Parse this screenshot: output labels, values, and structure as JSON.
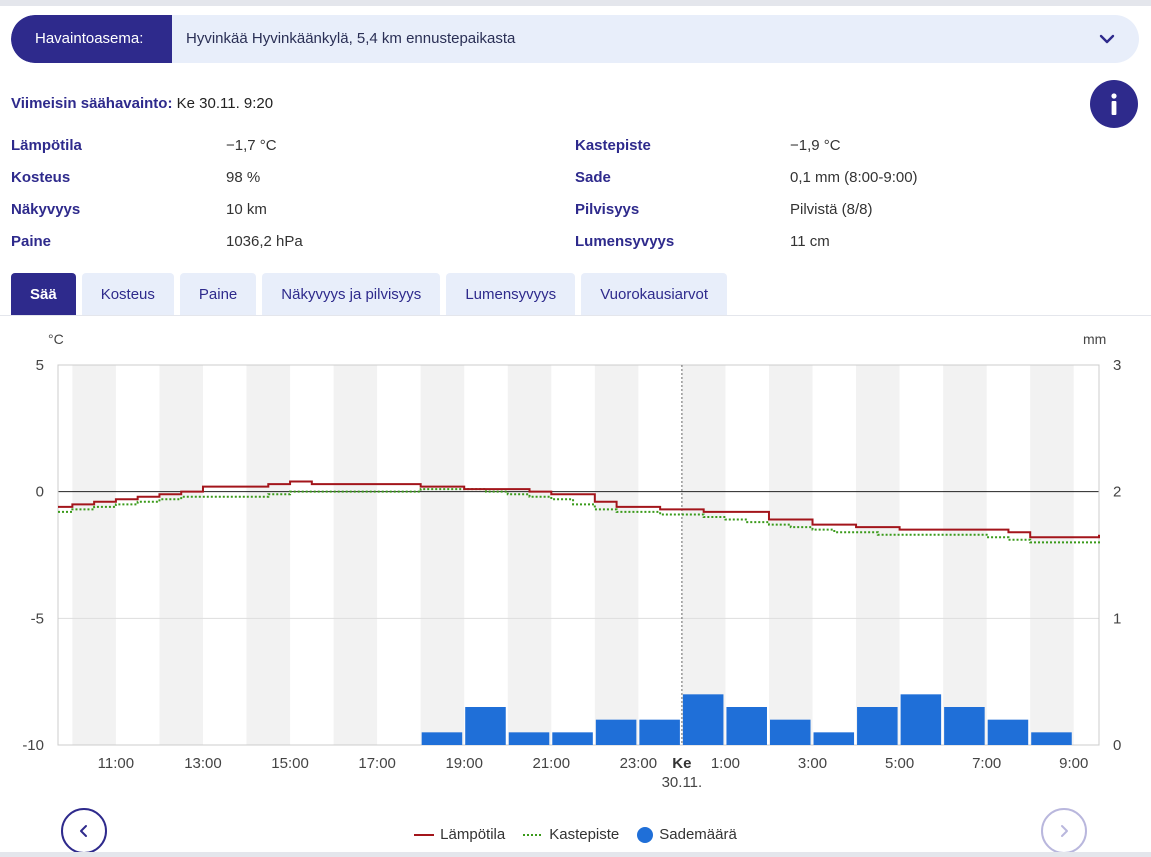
{
  "station": {
    "label": "Havaintoasema:",
    "value": "Hyvinkää Hyvinkäänkylä, 5,4 km ennustepaikasta"
  },
  "latest": {
    "label": "Viimeisin säähavainto:",
    "value": "Ke 30.11. 9:20"
  },
  "observations": [
    {
      "label": "Lämpötila",
      "value": "−1,7 °C"
    },
    {
      "label": "Kosteus",
      "value": "98 %"
    },
    {
      "label": "Näkyvyys",
      "value": "10 km"
    },
    {
      "label": "Paine",
      "value": "1036,2 hPa"
    },
    {
      "label": "Kastepiste",
      "value": "−1,9 °C"
    },
    {
      "label": "Sade",
      "value": "0,1 mm (8:00-9:00)"
    },
    {
      "label": "Pilvisyys",
      "value": "Pilvistä (8/8)"
    },
    {
      "label": "Lumensyvyys",
      "value": "11 cm"
    }
  ],
  "tabs": [
    {
      "label": "Sää",
      "active": true
    },
    {
      "label": "Kosteus"
    },
    {
      "label": "Paine"
    },
    {
      "label": "Näkyvyys ja pilvisyys"
    },
    {
      "label": "Lumensyvyys"
    },
    {
      "label": "Vuorokausiarvot"
    }
  ],
  "legend": {
    "temperature": "Lämpötila",
    "dewpoint": "Kastepiste",
    "precipitation": "Sademäärä"
  },
  "colors": {
    "brand": "#2e2a8c",
    "temperature": "#a3151b",
    "dewpoint": "#3a9a1a",
    "precipitation": "#1f6fd8"
  },
  "chart_data": {
    "type": "line",
    "y_left_unit": "°C",
    "y_right_unit": "mm",
    "y_left_range": [
      -10,
      5
    ],
    "y_left_ticks": [
      5,
      0,
      -5,
      -10
    ],
    "y_right_range": [
      0,
      3
    ],
    "y_right_ticks": [
      3,
      2,
      1,
      0
    ],
    "x_range_hours": [
      9.67,
      33.58
    ],
    "x_tick_labels": [
      {
        "h": 11,
        "label": "11:00"
      },
      {
        "h": 13,
        "label": "13:00"
      },
      {
        "h": 15,
        "label": "15:00"
      },
      {
        "h": 17,
        "label": "17:00"
      },
      {
        "h": 19,
        "label": "19:00"
      },
      {
        "h": 21,
        "label": "21:00"
      },
      {
        "h": 23,
        "label": "23:00"
      },
      {
        "h": 25,
        "label": "1:00"
      },
      {
        "h": 27,
        "label": "3:00"
      },
      {
        "h": 29,
        "label": "5:00"
      },
      {
        "h": 31,
        "label": "7:00"
      },
      {
        "h": 33,
        "label": "9:00"
      }
    ],
    "day_marker": {
      "h": 24,
      "label": "Ke",
      "sublabel": "30.11."
    },
    "series": [
      {
        "name": "Lämpötila",
        "points": [
          [
            9.67,
            -0.6
          ],
          [
            10,
            -0.5
          ],
          [
            10.5,
            -0.4
          ],
          [
            11,
            -0.3
          ],
          [
            11.5,
            -0.2
          ],
          [
            12,
            -0.1
          ],
          [
            12.5,
            0.0
          ],
          [
            13,
            0.2
          ],
          [
            13.5,
            0.2
          ],
          [
            14,
            0.2
          ],
          [
            14.5,
            0.3
          ],
          [
            15,
            0.4
          ],
          [
            15.5,
            0.3
          ],
          [
            16,
            0.3
          ],
          [
            17,
            0.3
          ],
          [
            18,
            0.2
          ],
          [
            18.5,
            0.2
          ],
          [
            19,
            0.1
          ],
          [
            20,
            0.1
          ],
          [
            20.5,
            0.0
          ],
          [
            21,
            -0.1
          ],
          [
            22,
            -0.4
          ],
          [
            22.5,
            -0.6
          ],
          [
            23,
            -0.6
          ],
          [
            23.5,
            -0.7
          ],
          [
            24,
            -0.7
          ],
          [
            24.5,
            -0.8
          ],
          [
            25,
            -0.8
          ],
          [
            26,
            -1.1
          ],
          [
            27,
            -1.3
          ],
          [
            27.5,
            -1.3
          ],
          [
            28,
            -1.4
          ],
          [
            28.5,
            -1.4
          ],
          [
            29,
            -1.5
          ],
          [
            29.5,
            -1.5
          ],
          [
            30,
            -1.5
          ],
          [
            31,
            -1.5
          ],
          [
            31.5,
            -1.6
          ],
          [
            32,
            -1.8
          ],
          [
            32.5,
            -1.8
          ],
          [
            33,
            -1.8
          ],
          [
            33.58,
            -1.7
          ]
        ]
      },
      {
        "name": "Kastepiste",
        "points": [
          [
            9.67,
            -0.8
          ],
          [
            10,
            -0.7
          ],
          [
            10.5,
            -0.6
          ],
          [
            11,
            -0.5
          ],
          [
            11.5,
            -0.4
          ],
          [
            12,
            -0.3
          ],
          [
            12.5,
            -0.2
          ],
          [
            13,
            -0.2
          ],
          [
            14,
            -0.2
          ],
          [
            14.5,
            -0.1
          ],
          [
            15,
            0.0
          ],
          [
            16,
            0.0
          ],
          [
            17,
            0.0
          ],
          [
            17.5,
            0.0
          ],
          [
            18,
            0.1
          ],
          [
            19,
            0.1
          ],
          [
            19.5,
            0.0
          ],
          [
            20,
            -0.1
          ],
          [
            20.5,
            -0.2
          ],
          [
            21,
            -0.3
          ],
          [
            21.5,
            -0.5
          ],
          [
            22,
            -0.7
          ],
          [
            22.5,
            -0.8
          ],
          [
            23,
            -0.8
          ],
          [
            23.5,
            -0.9
          ],
          [
            24,
            -0.9
          ],
          [
            24.5,
            -1.0
          ],
          [
            25,
            -1.1
          ],
          [
            25.5,
            -1.2
          ],
          [
            26,
            -1.3
          ],
          [
            26.5,
            -1.4
          ],
          [
            27,
            -1.5
          ],
          [
            27.5,
            -1.6
          ],
          [
            28,
            -1.6
          ],
          [
            28.5,
            -1.7
          ],
          [
            29,
            -1.7
          ],
          [
            29.5,
            -1.7
          ],
          [
            30,
            -1.7
          ],
          [
            31,
            -1.8
          ],
          [
            31.5,
            -1.9
          ],
          [
            32,
            -2.0
          ],
          [
            32.5,
            -2.0
          ],
          [
            33,
            -2.0
          ],
          [
            33.58,
            -1.9
          ]
        ]
      },
      {
        "name": "Sademäärä",
        "type": "bar",
        "bars": [
          {
            "h": 18,
            "value": 0.1
          },
          {
            "h": 19,
            "value": 0.3
          },
          {
            "h": 20,
            "value": 0.1
          },
          {
            "h": 21,
            "value": 0.1
          },
          {
            "h": 22,
            "value": 0.2
          },
          {
            "h": 23,
            "value": 0.2
          },
          {
            "h": 24,
            "value": 0.4
          },
          {
            "h": 25,
            "value": 0.3
          },
          {
            "h": 26,
            "value": 0.2
          },
          {
            "h": 27,
            "value": 0.1
          },
          {
            "h": 28,
            "value": 0.3
          },
          {
            "h": 29,
            "value": 0.4
          },
          {
            "h": 30,
            "value": 0.3
          },
          {
            "h": 31,
            "value": 0.2
          },
          {
            "h": 32,
            "value": 0.1
          }
        ]
      }
    ]
  }
}
